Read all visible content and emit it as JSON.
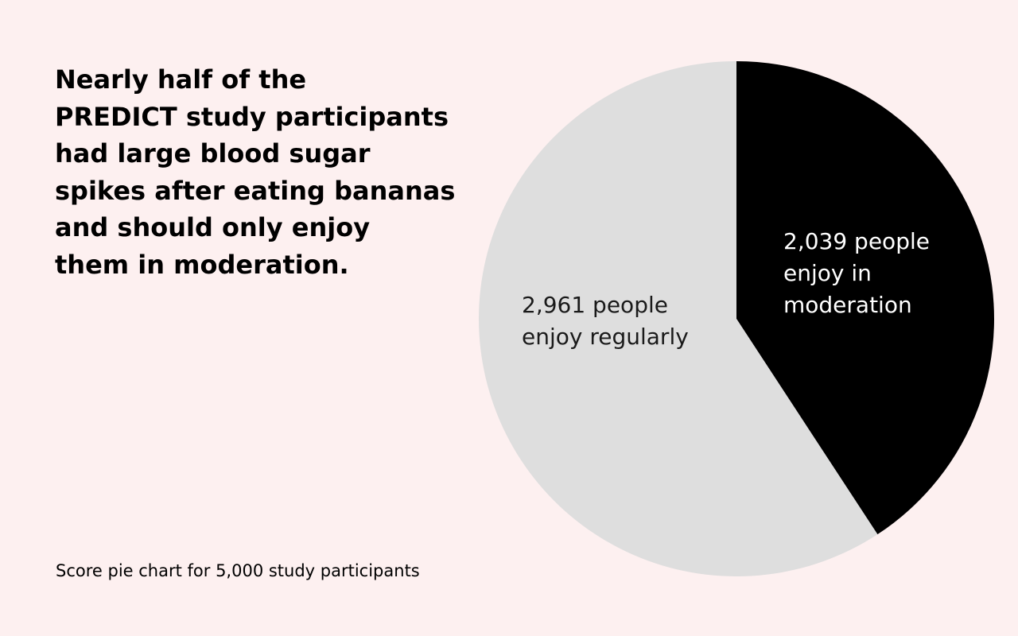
{
  "headline": {
    "lines": [
      "Nearly half of the",
      "PREDICT study participants",
      "had large blood sugar",
      "spikes after eating bananas",
      "and should only enjoy",
      "them in moderation."
    ]
  },
  "footnote": "Score pie chart for 5,000 study participants",
  "colors": {
    "background": "#fdf0f0",
    "moderation": "#000000",
    "regularly": "#dedede",
    "label_on_dark": "#ffffff",
    "label_on_light": "#1a1a1a"
  },
  "chart_data": {
    "type": "pie",
    "total": 5000,
    "slices": [
      {
        "key": "moderation",
        "value": 2039,
        "color": "#000000",
        "label_lines": [
          "2,039 people",
          "enjoy in",
          "moderation"
        ]
      },
      {
        "key": "regularly",
        "value": 2961,
        "color": "#dedede",
        "label_lines": [
          "2,961 people",
          "enjoy regularly"
        ]
      }
    ]
  }
}
